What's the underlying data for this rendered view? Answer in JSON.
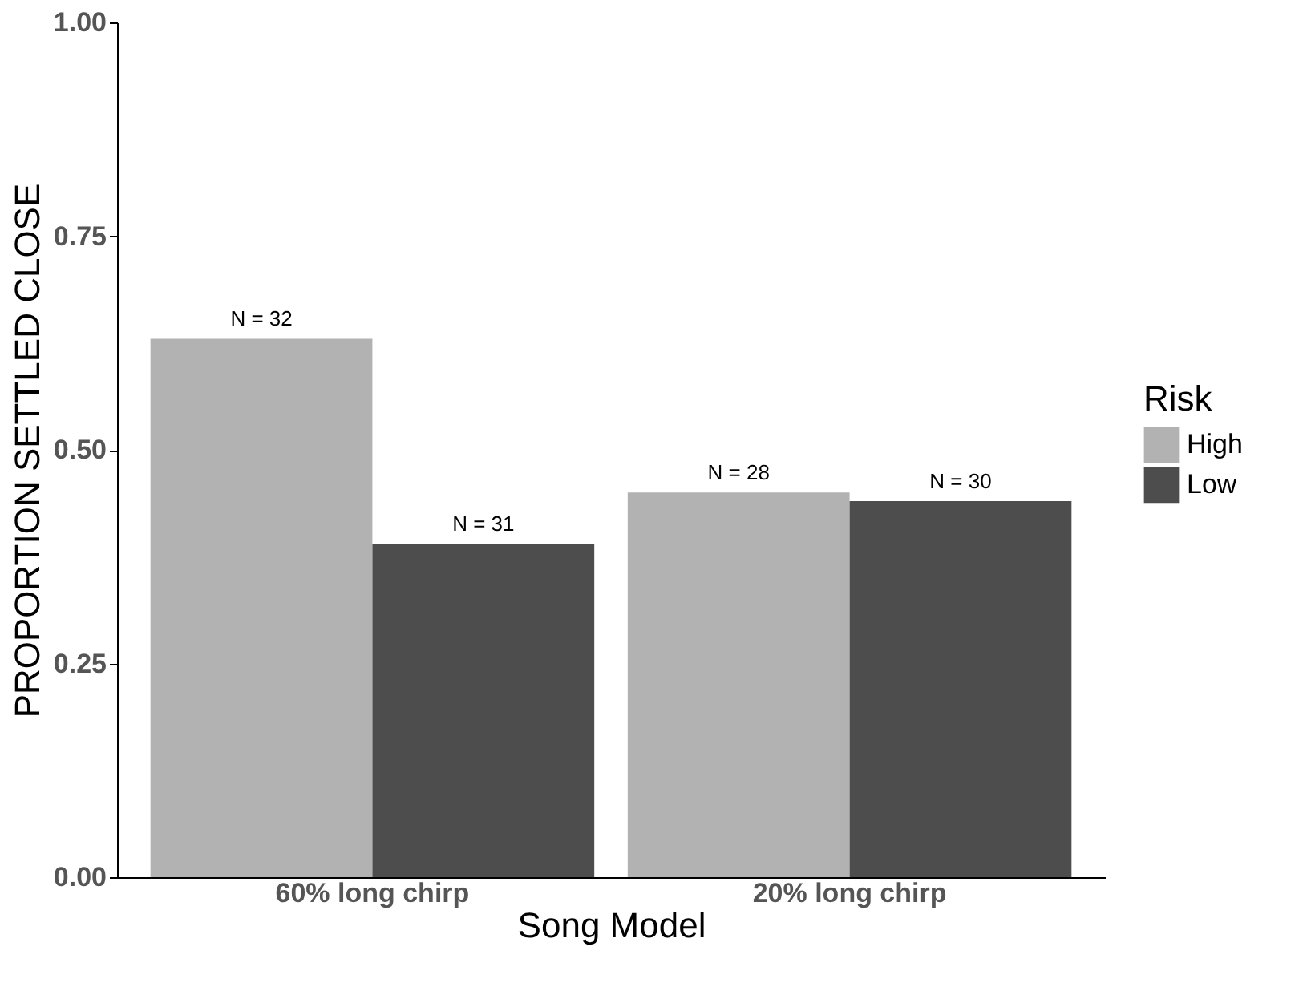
{
  "chart_data": {
    "type": "bar",
    "xlabel": "Song Model",
    "ylabel": "PROPORTION SETTLED CLOSE",
    "legend_title": "Risk",
    "legend": "right",
    "grid": false,
    "categories": [
      "60% long chirp",
      "20% long chirp"
    ],
    "series": [
      {
        "name": "High",
        "color": "#b2b2b2",
        "values": [
          0.63,
          0.45
        ]
      },
      {
        "name": "Low",
        "color": "#4d4d4d",
        "values": [
          0.39,
          0.44
        ]
      }
    ],
    "annotations": [
      "N = 32",
      "N = 31",
      "N = 28",
      "N = 30"
    ],
    "ylim": [
      0,
      1
    ],
    "yticks": [
      {
        "value": 0,
        "label": "0.00"
      },
      {
        "value": 0.25,
        "label": "0.25"
      },
      {
        "value": 0.5,
        "label": "0.50"
      },
      {
        "value": 0.75,
        "label": "0.75"
      },
      {
        "value": 1,
        "label": "1.00"
      }
    ]
  }
}
